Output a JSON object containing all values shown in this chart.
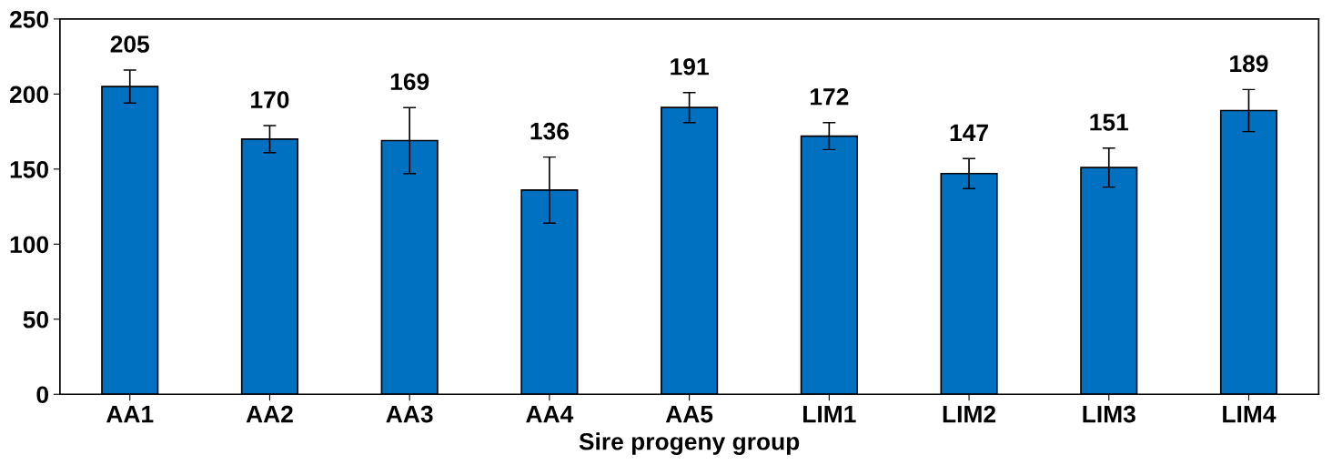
{
  "chart_data": {
    "type": "bar",
    "xlabel": "Sire progeny group",
    "categories": [
      "AA1",
      "AA2",
      "AA3",
      "AA4",
      "AA5",
      "LIM1",
      "LIM2",
      "LIM3",
      "LIM4"
    ],
    "values": [
      205,
      170,
      169,
      136,
      191,
      172,
      147,
      151,
      189
    ],
    "errors": [
      11,
      9,
      22,
      22,
      10,
      9,
      10,
      13,
      14
    ],
    "color": "#0070c0",
    "data_labels": true,
    "ylim": [
      0,
      250
    ],
    "yticks": [
      0,
      50,
      100,
      150,
      200,
      250
    ],
    "grid": false
  }
}
